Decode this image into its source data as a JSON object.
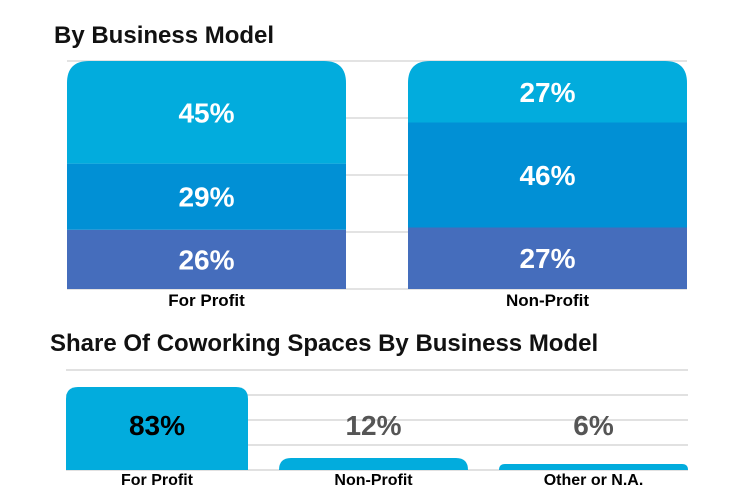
{
  "chart_data": [
    {
      "type": "bar",
      "stacked": true,
      "title": "By Business Model",
      "categories": [
        "For Profit",
        "Non-Profit"
      ],
      "series": [
        {
          "values": [
            26,
            27
          ],
          "labels": [
            "26%",
            "27%"
          ],
          "color": "#456dbc"
        },
        {
          "values": [
            29,
            46
          ],
          "labels": [
            "29%",
            "46%"
          ],
          "color": "#0190d5"
        },
        {
          "values": [
            45,
            27
          ],
          "labels": [
            "45%",
            "27%"
          ],
          "color": "#02acdd"
        }
      ],
      "ylim": [
        0,
        100
      ],
      "grid": true,
      "grid_step": 25
    },
    {
      "type": "bar",
      "title": "Share Of Coworking Spaces By Business Model",
      "categories": [
        "For Profit",
        "Non-Profit",
        "Other or N.A."
      ],
      "values": [
        83,
        12,
        6
      ],
      "labels": [
        "83%",
        "12%",
        "6%"
      ],
      "color": "#02acdd",
      "label_colors": [
        "#000000",
        "#555555",
        "#555555"
      ],
      "ylim": [
        0,
        100
      ],
      "grid": true,
      "grid_step": 25
    }
  ]
}
